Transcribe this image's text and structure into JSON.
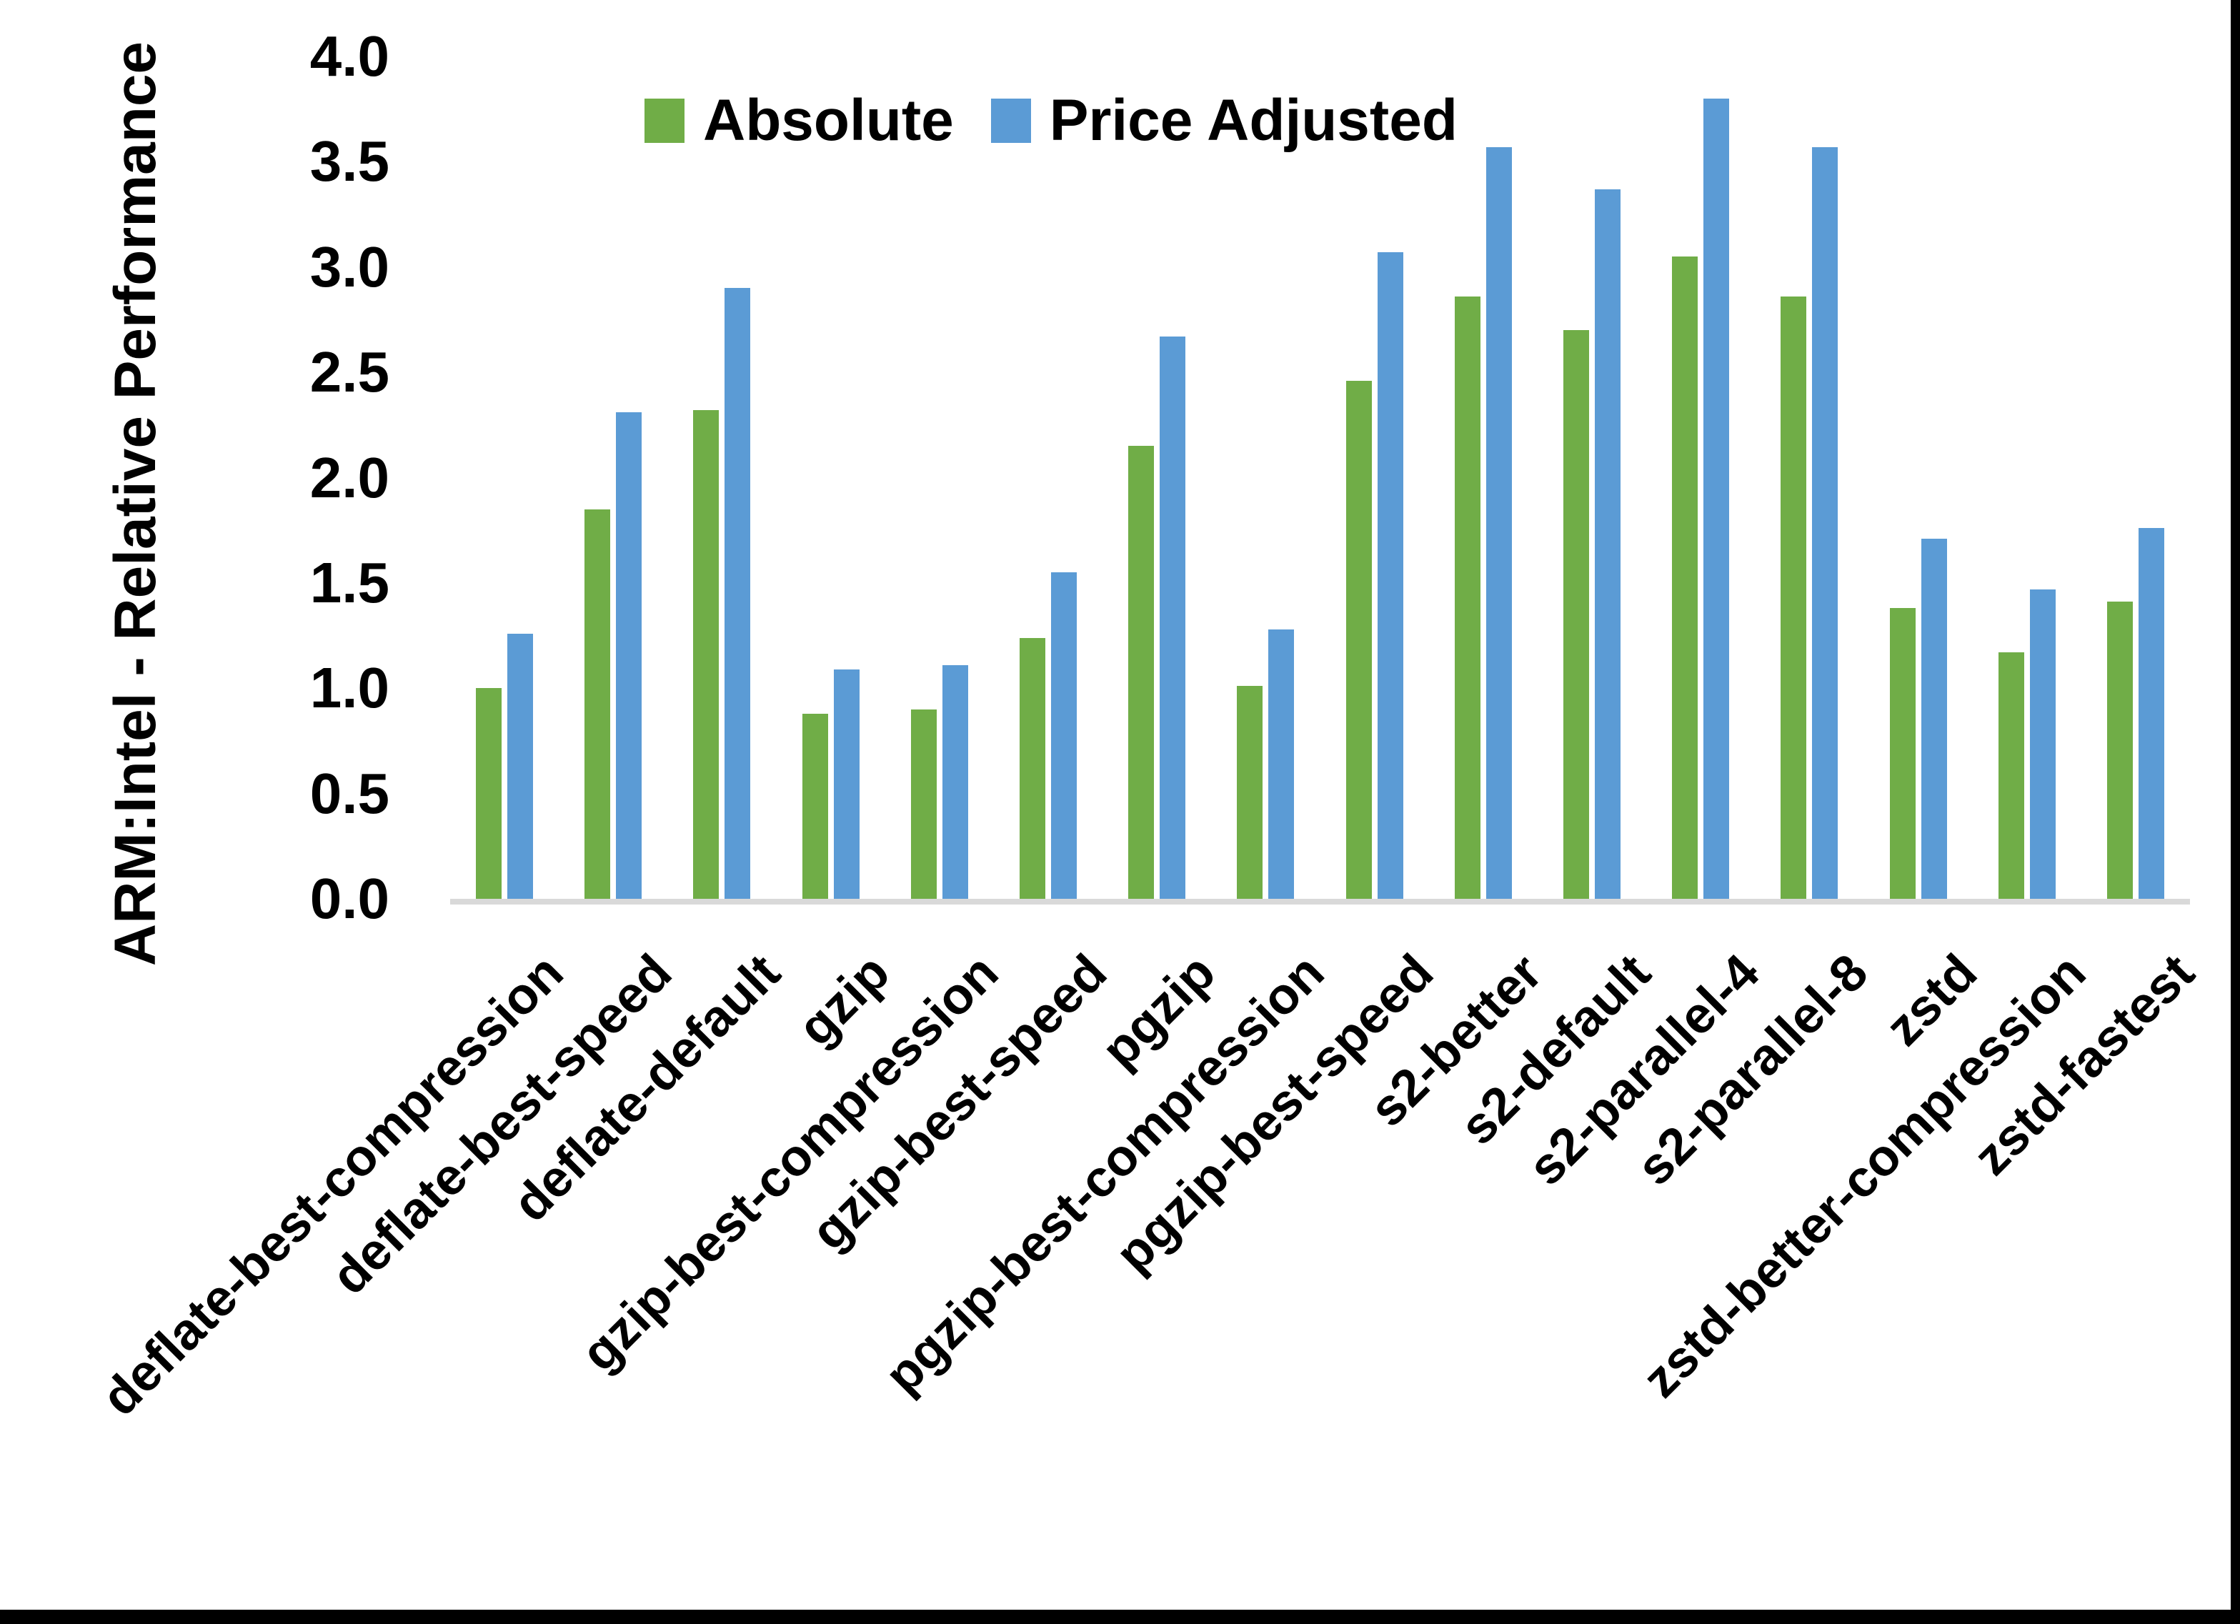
{
  "figure": {
    "background": "#ffffff",
    "frame_border_color": "#000000",
    "axis_line_color": "#d9d9d9",
    "text_color": "#000000"
  },
  "legend": {
    "position": "top",
    "items": [
      {
        "label": "Absolute",
        "color": "#70AD47"
      },
      {
        "label": "Price Adjusted",
        "color": "#5B9BD5"
      }
    ]
  },
  "chart_data": {
    "type": "bar",
    "title": "",
    "xlabel": "",
    "ylabel": "ARM:Intel - Relative Performance",
    "ylim": [
      0,
      4
    ],
    "ytick_step": 0.5,
    "ytick_labels": [
      "0.0",
      "0.5",
      "1.0",
      "1.5",
      "2.0",
      "2.5",
      "3.0",
      "3.5",
      "4.0"
    ],
    "grid": false,
    "legend_position": "top",
    "categories": [
      "deflate-best-compression",
      "deflate-best-speed",
      "deflate-default",
      "gzip",
      "gzip-best-compression",
      "gzip-best-speed",
      "pgzip",
      "pgzip-best-compression",
      "pgzip-best-speed",
      "s2-better",
      "s2-default",
      "s2-parallel-4",
      "s2-parallel-8",
      "zstd",
      "zstd-better-compression",
      "zstd-fastest"
    ],
    "series": [
      {
        "name": "Absolute",
        "color": "#70AD47",
        "values": [
          1.0,
          1.85,
          2.32,
          0.88,
          0.9,
          1.24,
          2.15,
          1.01,
          2.46,
          2.86,
          2.7,
          3.05,
          2.86,
          1.38,
          1.17,
          1.41
        ]
      },
      {
        "name": "Price Adjusted",
        "color": "#5B9BD5",
        "values": [
          1.26,
          2.31,
          2.9,
          1.09,
          1.11,
          1.55,
          2.67,
          1.28,
          3.07,
          3.57,
          3.37,
          3.8,
          3.57,
          1.71,
          1.47,
          1.76
        ]
      }
    ]
  }
}
